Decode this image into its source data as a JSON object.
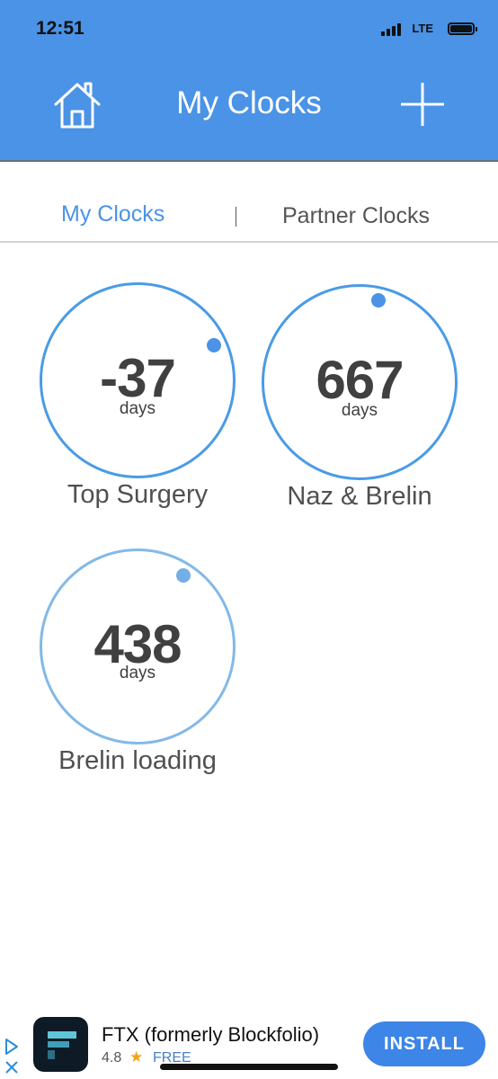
{
  "status": {
    "time": "12:51",
    "network": "LTE"
  },
  "header": {
    "title": "My Clocks",
    "home_icon": "home-icon",
    "add_icon": "plus-icon"
  },
  "tabs": [
    {
      "label": "My Clocks",
      "active": true
    },
    {
      "label": "Partner Clocks",
      "active": false
    }
  ],
  "tab_separator": "|",
  "clocks": [
    {
      "value": "-37",
      "unit": "days",
      "name": "Top Surgery"
    },
    {
      "value": "667",
      "unit": "days",
      "name": "Naz & Brelin"
    },
    {
      "value": "438",
      "unit": "days",
      "name": "Brelin loading"
    }
  ],
  "ad": {
    "title": "FTX (formerly Blockfolio)",
    "rating": "4.8",
    "rating_icon": "star-icon",
    "price": "FREE",
    "install_label": "INSTALL"
  },
  "colors": {
    "header_bg": "#4a93e6",
    "accent": "#4a93e6",
    "install_bg": "#3d85e6"
  }
}
